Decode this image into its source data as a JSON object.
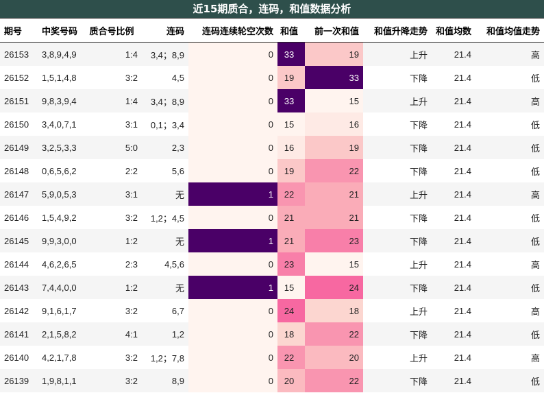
{
  "title": "近15期质合，连码，和值数据分析",
  "headers": [
    "期号",
    "中奖号码",
    "质合号比例",
    "连码",
    "连码连续轮空次数",
    "和值",
    "前一次和值",
    "和值升降走势",
    "和值均数",
    "和值均值走势"
  ],
  "rows": [
    {
      "issue": "26153",
      "numbers": "3,8,9,4,9",
      "ratio": "1:4",
      "consecutive": "3,4；8,9",
      "gap": "0",
      "sum": "33",
      "prev_sum": "19",
      "trend": "上升",
      "avg": "21.4",
      "avg_trend": "高"
    },
    {
      "issue": "26152",
      "numbers": "1,5,1,4,8",
      "ratio": "3:2",
      "consecutive": "4,5",
      "gap": "0",
      "sum": "19",
      "prev_sum": "33",
      "trend": "下降",
      "avg": "21.4",
      "avg_trend": "低"
    },
    {
      "issue": "26151",
      "numbers": "9,8,3,9,4",
      "ratio": "1:4",
      "consecutive": "3,4；8,9",
      "gap": "0",
      "sum": "33",
      "prev_sum": "15",
      "trend": "上升",
      "avg": "21.4",
      "avg_trend": "高"
    },
    {
      "issue": "26150",
      "numbers": "3,4,0,7,1",
      "ratio": "3:1",
      "consecutive": "0,1；3,4",
      "gap": "0",
      "sum": "15",
      "prev_sum": "16",
      "trend": "下降",
      "avg": "21.4",
      "avg_trend": "低"
    },
    {
      "issue": "26149",
      "numbers": "3,2,5,3,3",
      "ratio": "5:0",
      "consecutive": "2,3",
      "gap": "0",
      "sum": "16",
      "prev_sum": "19",
      "trend": "下降",
      "avg": "21.4",
      "avg_trend": "低"
    },
    {
      "issue": "26148",
      "numbers": "0,6,5,6,2",
      "ratio": "2:2",
      "consecutive": "5,6",
      "gap": "0",
      "sum": "19",
      "prev_sum": "22",
      "trend": "下降",
      "avg": "21.4",
      "avg_trend": "低"
    },
    {
      "issue": "26147",
      "numbers": "5,9,0,5,3",
      "ratio": "3:1",
      "consecutive": "无",
      "gap": "1",
      "sum": "22",
      "prev_sum": "21",
      "trend": "上升",
      "avg": "21.4",
      "avg_trend": "高"
    },
    {
      "issue": "26146",
      "numbers": "1,5,4,9,2",
      "ratio": "3:2",
      "consecutive": "1,2；4,5",
      "gap": "0",
      "sum": "21",
      "prev_sum": "21",
      "trend": "下降",
      "avg": "21.4",
      "avg_trend": "低"
    },
    {
      "issue": "26145",
      "numbers": "9,9,3,0,0",
      "ratio": "1:2",
      "consecutive": "无",
      "gap": "1",
      "sum": "21",
      "prev_sum": "23",
      "trend": "下降",
      "avg": "21.4",
      "avg_trend": "低"
    },
    {
      "issue": "26144",
      "numbers": "4,6,2,6,5",
      "ratio": "2:3",
      "consecutive": "4,5,6",
      "gap": "0",
      "sum": "23",
      "prev_sum": "15",
      "trend": "上升",
      "avg": "21.4",
      "avg_trend": "高"
    },
    {
      "issue": "26143",
      "numbers": "7,4,4,0,0",
      "ratio": "1:2",
      "consecutive": "无",
      "gap": "1",
      "sum": "15",
      "prev_sum": "24",
      "trend": "下降",
      "avg": "21.4",
      "avg_trend": "低"
    },
    {
      "issue": "26142",
      "numbers": "9,1,6,1,7",
      "ratio": "3:2",
      "consecutive": "6,7",
      "gap": "0",
      "sum": "24",
      "prev_sum": "18",
      "trend": "上升",
      "avg": "21.4",
      "avg_trend": "高"
    },
    {
      "issue": "26141",
      "numbers": "2,1,5,8,2",
      "ratio": "4:1",
      "consecutive": "1,2",
      "gap": "0",
      "sum": "18",
      "prev_sum": "22",
      "trend": "下降",
      "avg": "21.4",
      "avg_trend": "低"
    },
    {
      "issue": "26140",
      "numbers": "4,2,1,7,8",
      "ratio": "3:2",
      "consecutive": "1,2；7,8",
      "gap": "0",
      "sum": "22",
      "prev_sum": "20",
      "trend": "上升",
      "avg": "21.4",
      "avg_trend": "高"
    },
    {
      "issue": "26139",
      "numbers": "1,9,8,1,1",
      "ratio": "3:2",
      "consecutive": "8,9",
      "gap": "0",
      "sum": "20",
      "prev_sum": "22",
      "trend": "下降",
      "avg": "21.4",
      "avg_trend": "低"
    }
  ],
  "colors": {
    "title_bg": "#2e4f4b",
    "gap_zero": "#fff4ef",
    "gap_one": "#4a0067"
  }
}
